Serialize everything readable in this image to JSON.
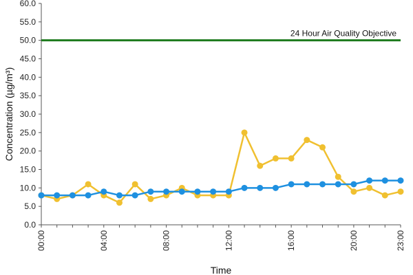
{
  "chart_data": {
    "type": "line",
    "xlabel": "Time",
    "ylabel": "Concentration (µg/m³)",
    "ylim": [
      0,
      60
    ],
    "yticks": [
      "0.0",
      "5.0",
      "10.0",
      "15.0",
      "20.0",
      "25.0",
      "30.0",
      "35.0",
      "40.0",
      "45.0",
      "50.0",
      "55.0",
      "60.0"
    ],
    "x": [
      "00:00",
      "01:00",
      "02:00",
      "03:00",
      "04:00",
      "05:00",
      "06:00",
      "07:00",
      "08:00",
      "09:00",
      "10:00",
      "11:00",
      "12:00",
      "13:00",
      "14:00",
      "15:00",
      "16:00",
      "17:00",
      "18:00",
      "19:00",
      "20:00",
      "21:00",
      "22:00",
      "23:00"
    ],
    "xticks": [
      "00:00",
      "04:00",
      "08:00",
      "12:00",
      "16:00",
      "20:00",
      "23:00"
    ],
    "grid": false,
    "reference_line": {
      "label": "24 Hour Air Quality Objective",
      "value": 50,
      "color": "#1e7b1e"
    },
    "series": [
      {
        "color": "#f0c030",
        "values": [
          8,
          7,
          8,
          11,
          8,
          6,
          11,
          7,
          8,
          10,
          8,
          8,
          8,
          25,
          16,
          18,
          18,
          23,
          21,
          13,
          9,
          10,
          8,
          9
        ]
      },
      {
        "color": "#1e90e0",
        "values": [
          8,
          8,
          8,
          8,
          9,
          8,
          8,
          9,
          9,
          9,
          9,
          9,
          9,
          10,
          10,
          10,
          11,
          11,
          11,
          11,
          11,
          12,
          12,
          12
        ]
      }
    ]
  }
}
